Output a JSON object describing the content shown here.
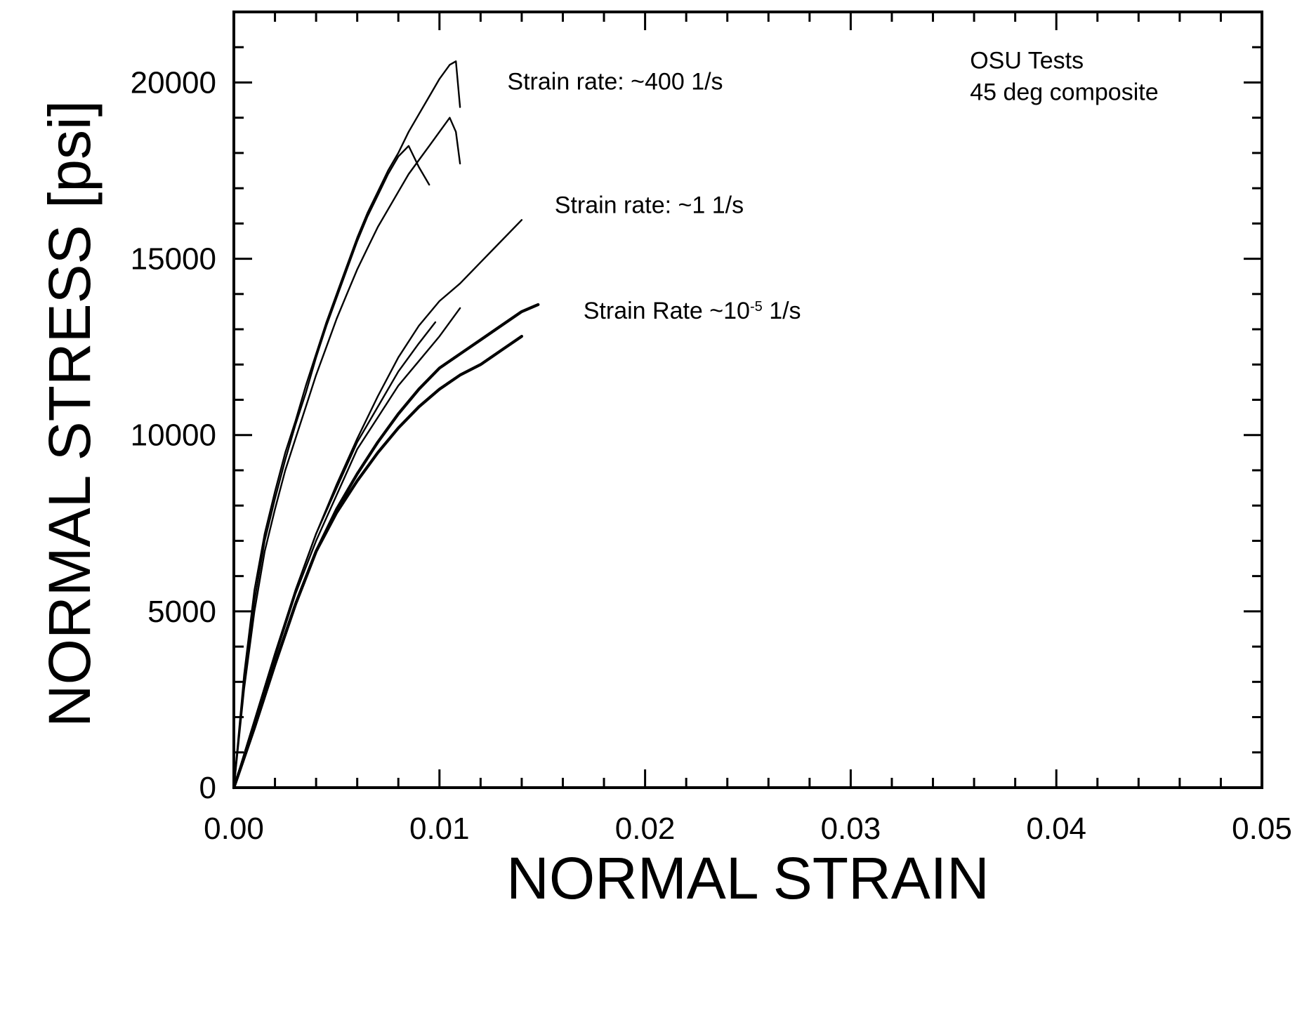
{
  "chart_data": {
    "type": "line",
    "title": "",
    "xlabel": "NORMAL STRAIN",
    "ylabel": "NORMAL STRESS [psi]",
    "xlim": [
      0,
      0.05
    ],
    "ylim": [
      0,
      22000
    ],
    "x_ticks": [
      0,
      0.01,
      0.02,
      0.03,
      0.04,
      0.05
    ],
    "x_tick_labels": [
      "0.00",
      "0.01",
      "0.02",
      "0.03",
      "0.04",
      "0.05"
    ],
    "y_ticks": [
      0,
      5000,
      10000,
      15000,
      20000
    ],
    "y_tick_labels": [
      "0",
      "5000",
      "10000",
      "15000",
      "20000"
    ],
    "grid": false,
    "annotations": [
      {
        "text": "OSU Tests",
        "x": 0.0358,
        "y": 20400
      },
      {
        "text": "45 deg composite",
        "x": 0.0358,
        "y": 19500
      },
      {
        "text": "Strain rate: ~400 1/s",
        "x": 0.0133,
        "y": 19800
      },
      {
        "text": "Strain rate: ~1 1/s",
        "x": 0.0156,
        "y": 16300
      },
      {
        "text": "Strain Rate ~10",
        "sup": "-5",
        "suffix": " 1/s",
        "x": 0.017,
        "y": 13300
      }
    ],
    "series": [
      {
        "group": "400",
        "x": [
          0,
          0.0005,
          0.001,
          0.0015,
          0.002,
          0.0025,
          0.003,
          0.0035,
          0.004,
          0.0045,
          0.005,
          0.0055,
          0.006,
          0.0065,
          0.007,
          0.0075,
          0.008,
          0.0085,
          0.009,
          0.0095,
          0.01,
          0.0105,
          0.0108,
          0.011
        ],
        "y": [
          0,
          3200,
          5600,
          7200,
          8400,
          9500,
          10400,
          11400,
          12300,
          13200,
          14000,
          14800,
          15600,
          16300,
          16900,
          17500,
          18000,
          18600,
          19100,
          19600,
          20100,
          20500,
          20600,
          19300
        ]
      },
      {
        "group": "400",
        "x": [
          0,
          0.0005,
          0.001,
          0.0015,
          0.002,
          0.0025,
          0.003,
          0.0035,
          0.004,
          0.0045,
          0.005,
          0.0055,
          0.006,
          0.0065,
          0.007,
          0.0075,
          0.008,
          0.0085,
          0.009,
          0.0095
        ],
        "y": [
          0,
          3000,
          5300,
          7000,
          8200,
          9300,
          10300,
          11200,
          12200,
          13100,
          13900,
          14700,
          15500,
          16200,
          16800,
          17400,
          17900,
          18200,
          17600,
          17100
        ]
      },
      {
        "group": "400",
        "x": [
          0,
          0.0005,
          0.001,
          0.0015,
          0.002,
          0.0025,
          0.003,
          0.0035,
          0.004,
          0.0045,
          0.005,
          0.0055,
          0.006,
          0.0065,
          0.007,
          0.0075,
          0.008,
          0.0085,
          0.009,
          0.0095,
          0.01,
          0.0105,
          0.0108,
          0.011
        ],
        "y": [
          0,
          2800,
          5000,
          6700,
          7900,
          9000,
          9900,
          10800,
          11700,
          12500,
          13300,
          14000,
          14700,
          15300,
          15900,
          16400,
          16900,
          17400,
          17800,
          18200,
          18600,
          19000,
          18600,
          17700
        ]
      },
      {
        "group": "1",
        "x": [
          0,
          0.001,
          0.002,
          0.003,
          0.004,
          0.005,
          0.006,
          0.007,
          0.008,
          0.009,
          0.01,
          0.011,
          0.012,
          0.013,
          0.014
        ],
        "y": [
          0,
          1900,
          3800,
          5600,
          7200,
          8600,
          9900,
          11100,
          12200,
          13100,
          13800,
          14300,
          14900,
          15500,
          16100
        ]
      },
      {
        "group": "1",
        "x": [
          0,
          0.001,
          0.002,
          0.003,
          0.004,
          0.005,
          0.006,
          0.007,
          0.008,
          0.009,
          0.0098
        ],
        "y": [
          0,
          1900,
          3800,
          5600,
          7200,
          8500,
          9800,
          10800,
          11800,
          12600,
          13200
        ]
      },
      {
        "group": "1",
        "x": [
          0,
          0.001,
          0.002,
          0.003,
          0.004,
          0.005,
          0.006,
          0.007,
          0.008,
          0.009,
          0.01,
          0.011
        ],
        "y": [
          0,
          1800,
          3700,
          5500,
          7000,
          8300,
          9600,
          10500,
          11400,
          12100,
          12800,
          13600
        ]
      },
      {
        "group": "1e-5",
        "x": [
          0,
          0.001,
          0.002,
          0.003,
          0.004,
          0.005,
          0.006,
          0.007,
          0.008,
          0.009,
          0.01,
          0.011,
          0.012,
          0.013,
          0.014,
          0.0148
        ],
        "y": [
          0,
          1700,
          3500,
          5200,
          6700,
          7900,
          8900,
          9800,
          10600,
          11300,
          11900,
          12300,
          12700,
          13100,
          13500,
          13700
        ]
      },
      {
        "group": "1e-5",
        "x": [
          0,
          0.001,
          0.002,
          0.003,
          0.004,
          0.005,
          0.006,
          0.007,
          0.008,
          0.009,
          0.01,
          0.011,
          0.012,
          0.013,
          0.014
        ],
        "y": [
          0,
          1700,
          3500,
          5200,
          6700,
          7800,
          8700,
          9500,
          10200,
          10800,
          11300,
          11700,
          12000,
          12400,
          12800
        ]
      }
    ]
  }
}
